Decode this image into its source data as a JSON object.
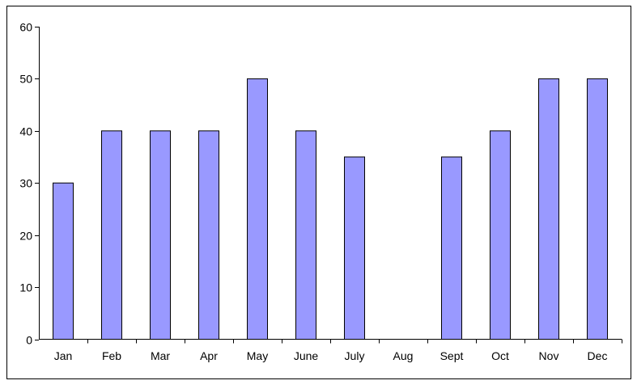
{
  "chart_data": {
    "type": "bar",
    "title": "",
    "xlabel": "",
    "ylabel": "",
    "categories": [
      "Jan",
      "Feb",
      "Mar",
      "Apr",
      "May",
      "June",
      "July",
      "Aug",
      "Sept",
      "Oct",
      "Nov",
      "Dec"
    ],
    "values": [
      30,
      40,
      40,
      40,
      50,
      40,
      35,
      0,
      35,
      40,
      50,
      50
    ],
    "ylim": [
      0,
      60
    ],
    "yticks": [
      "0",
      "10",
      "20",
      "30",
      "40",
      "50",
      "60"
    ],
    "grid": false,
    "legend": "none",
    "bar_color": "#9999ff",
    "bar_edge_color": "#000000"
  }
}
